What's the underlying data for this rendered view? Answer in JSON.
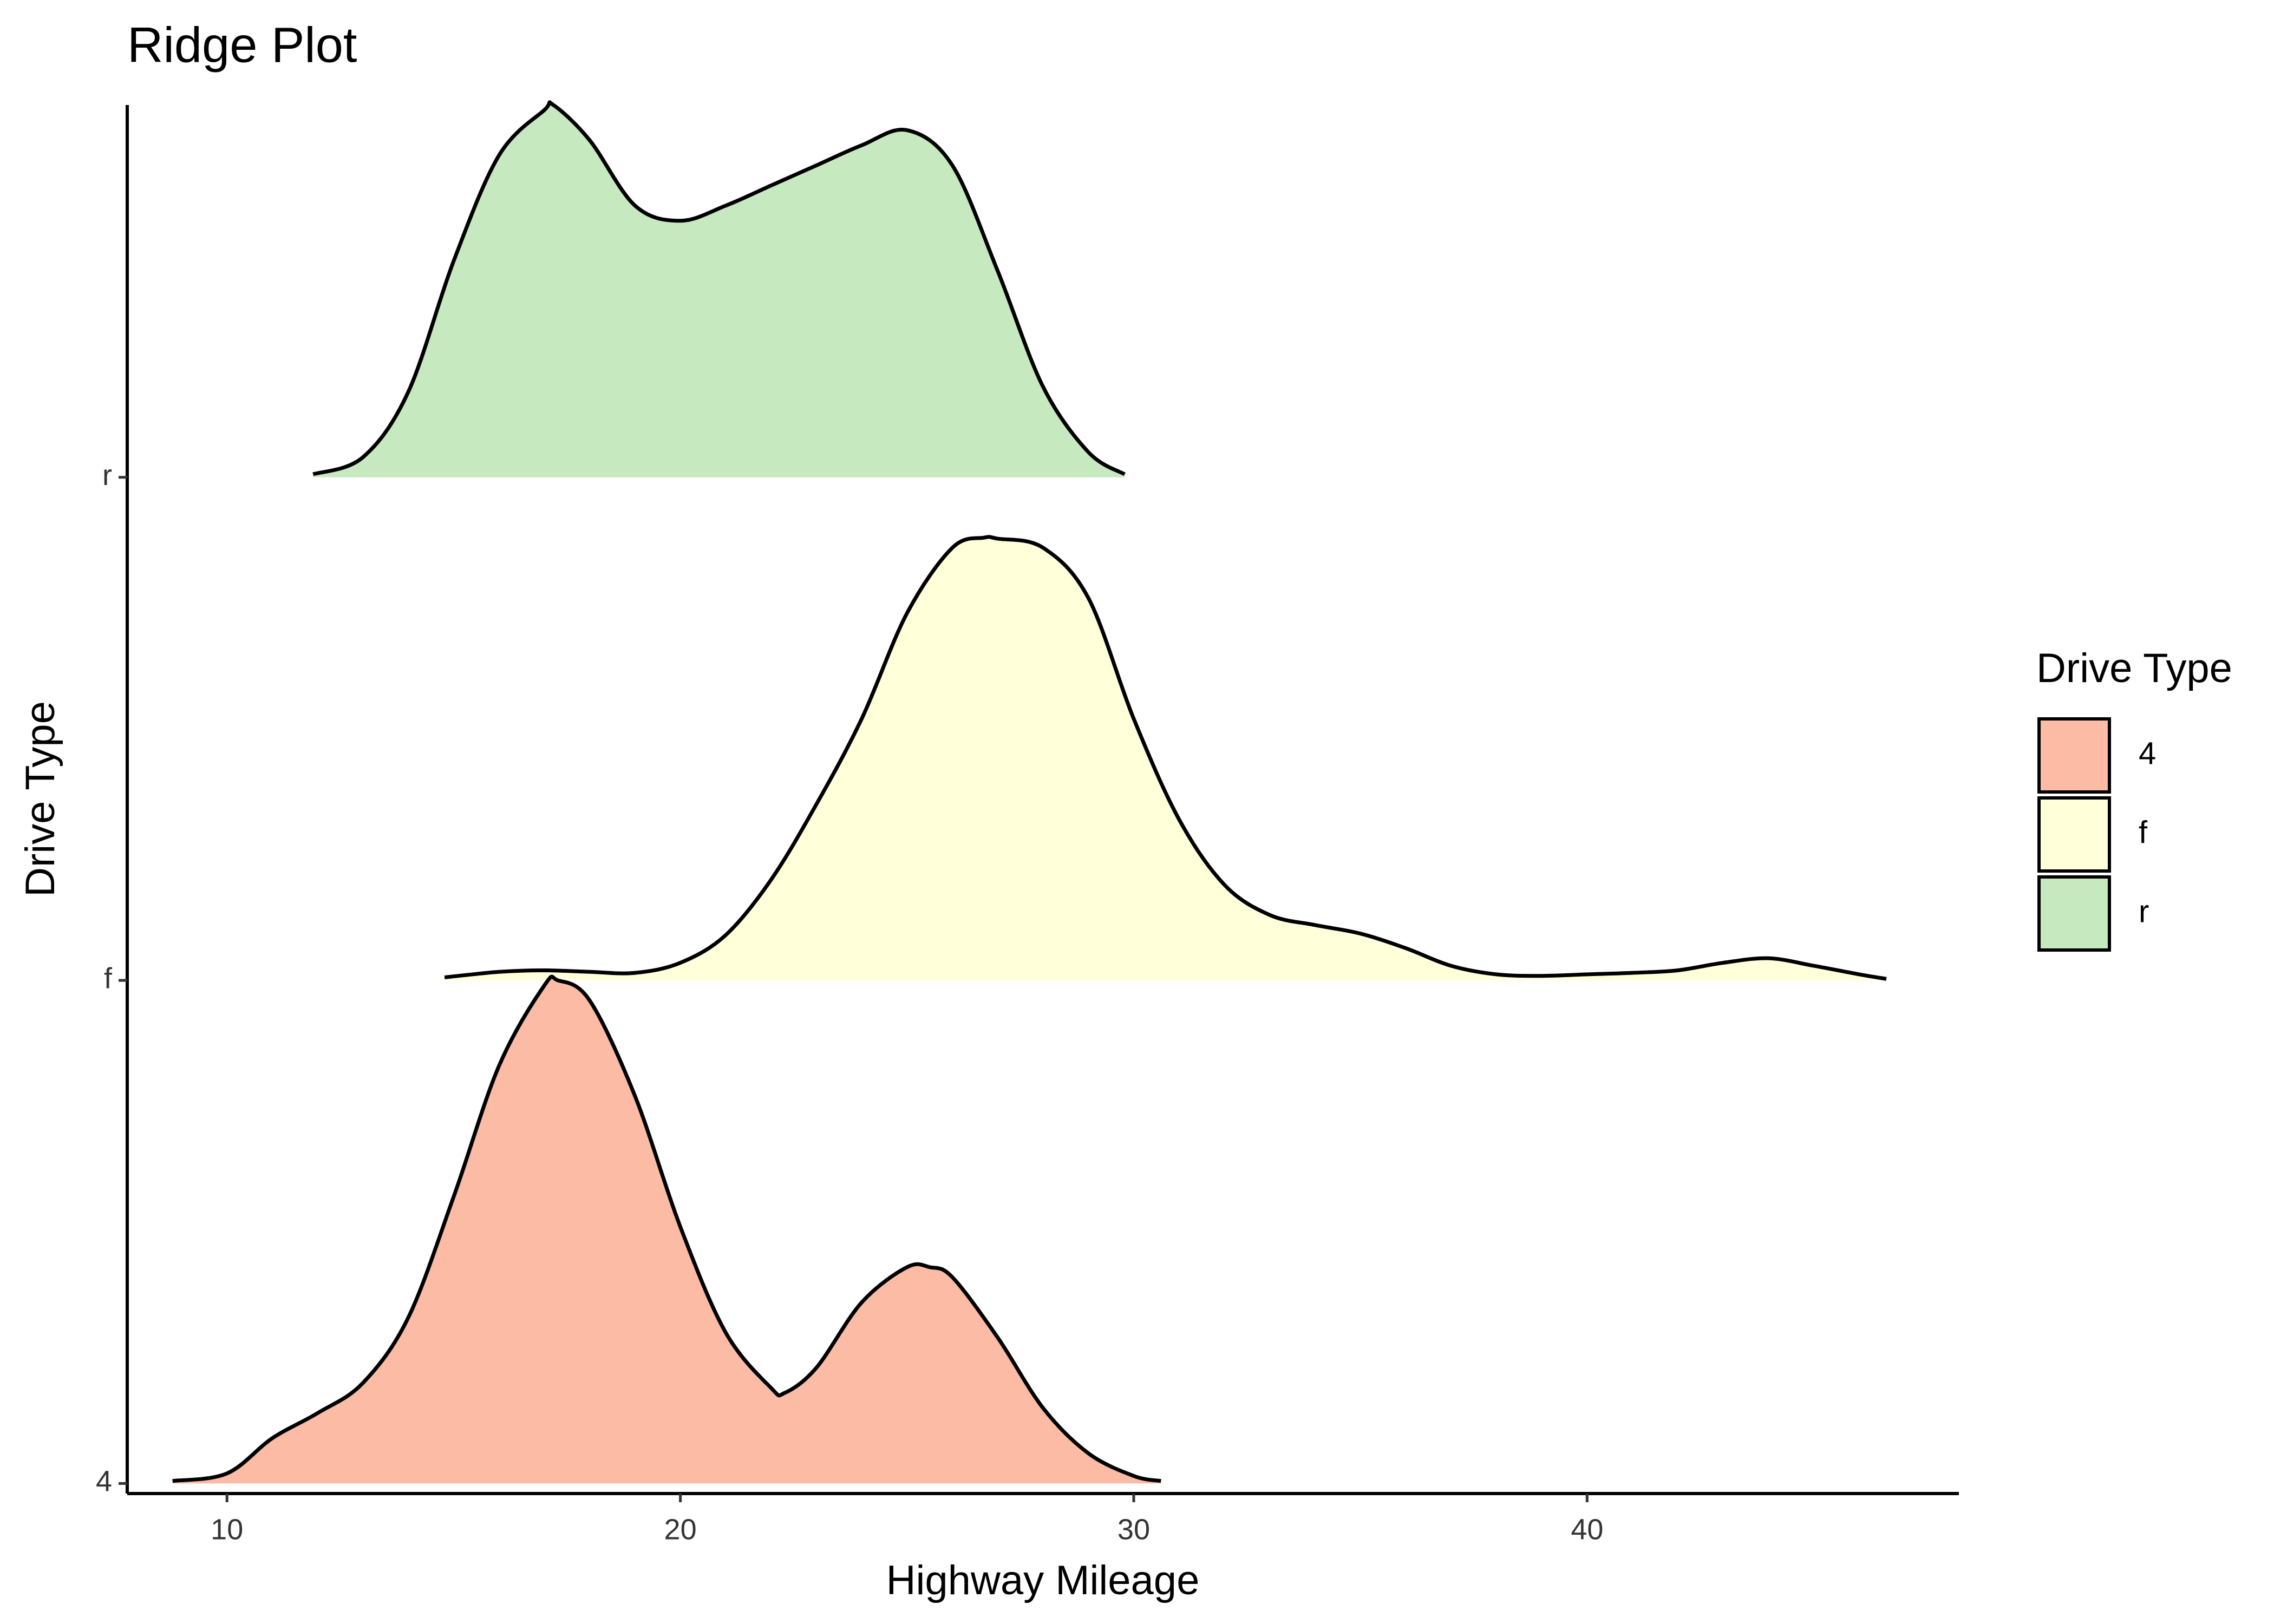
{
  "chart_data": {
    "type": "ridgeline",
    "title": "Ridge Plot",
    "x_label": "Highway Mileage",
    "y_label": "Drive Type",
    "legend_title": "Drive Type",
    "legend_position": "right",
    "categories": [
      "4",
      "f",
      "r"
    ],
    "xlim": [
      7.8,
      48.2
    ],
    "xticks": [
      10,
      20,
      30,
      40
    ],
    "ylim": [
      -0.02,
      2.74
    ],
    "series": [
      {
        "name": "4",
        "color": "#fbbba5",
        "x": [
          8.8,
          10,
          11,
          12,
          13,
          14,
          15,
          16,
          17,
          17.3,
          18,
          19,
          20,
          21,
          22,
          22.3,
          23,
          24,
          25,
          25.5,
          26,
          27,
          28,
          29,
          30,
          30.6
        ],
        "values": [
          0.005,
          0.02,
          0.09,
          0.14,
          0.2,
          0.33,
          0.57,
          0.83,
          0.99,
          1.0,
          0.96,
          0.77,
          0.51,
          0.3,
          0.19,
          0.18,
          0.23,
          0.36,
          0.43,
          0.43,
          0.41,
          0.29,
          0.15,
          0.06,
          0.015,
          0.005
        ]
      },
      {
        "name": "f",
        "color": "#ffffda",
        "x": [
          14.8,
          16,
          17,
          18,
          19,
          20,
          21,
          22,
          23,
          24,
          25,
          26,
          26.7,
          27,
          28,
          29,
          30,
          31,
          32,
          33,
          34,
          35,
          36,
          37,
          38,
          39,
          40,
          41,
          42,
          43,
          44,
          45,
          46,
          46.6
        ],
        "values": [
          0.006,
          0.017,
          0.02,
          0.017,
          0.015,
          0.035,
          0.09,
          0.2,
          0.35,
          0.52,
          0.73,
          0.86,
          0.88,
          0.878,
          0.86,
          0.76,
          0.52,
          0.32,
          0.19,
          0.13,
          0.11,
          0.093,
          0.064,
          0.029,
          0.012,
          0.009,
          0.012,
          0.015,
          0.02,
          0.035,
          0.044,
          0.029,
          0.012,
          0.003
        ]
      },
      {
        "name": "r",
        "color": "#c7e9c0",
        "x": [
          11.9,
          13,
          14,
          15,
          16,
          17,
          17.2,
          18,
          19,
          20,
          21,
          22,
          23,
          24,
          25,
          26,
          27,
          28,
          29,
          29.8
        ],
        "values": [
          0.006,
          0.04,
          0.17,
          0.43,
          0.64,
          0.73,
          0.74,
          0.67,
          0.54,
          0.51,
          0.54,
          0.58,
          0.62,
          0.66,
          0.69,
          0.62,
          0.41,
          0.18,
          0.05,
          0.006
        ]
      }
    ]
  }
}
